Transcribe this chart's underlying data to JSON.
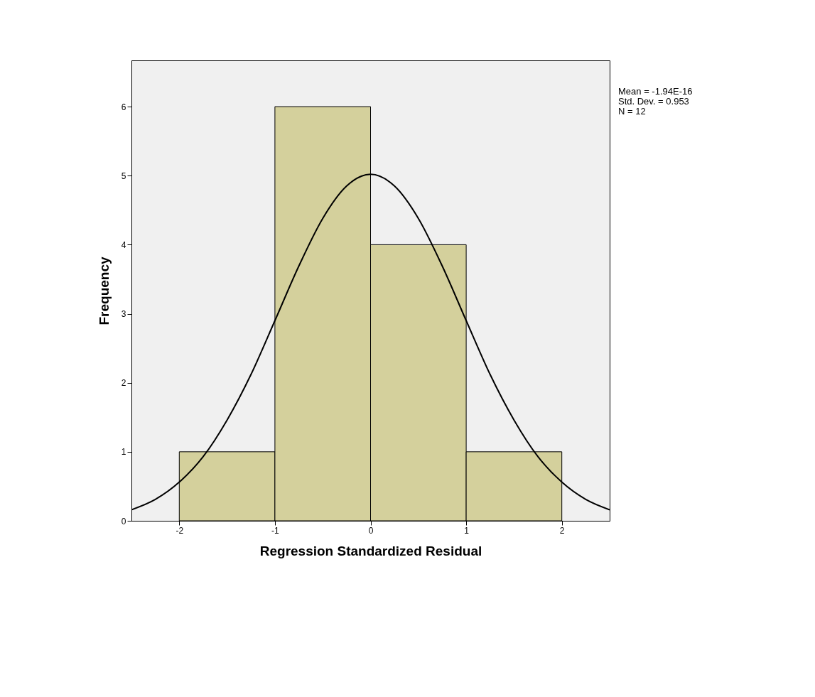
{
  "chart_data": {
    "type": "histogram",
    "xlabel": "Regression Standardized Residual",
    "ylabel": "Frequency",
    "bins": [
      -2,
      -1,
      0,
      1,
      2
    ],
    "series": [
      {
        "color": "#d4d09c",
        "values": [
          1,
          6,
          4,
          1
        ]
      },
      {
        "type": "line",
        "color": "#000000",
        "x": [
          -2.5,
          -2.25,
          -2,
          -1.75,
          -1.5,
          -1.25,
          -1,
          -0.75,
          -0.5,
          -0.25,
          0,
          0.25,
          0.5,
          0.75,
          1,
          1.25,
          1.5,
          1.75,
          2,
          2.25,
          2.5
        ],
        "values": [
          0.16,
          0.31,
          0.56,
          0.93,
          1.46,
          2.12,
          2.9,
          3.69,
          4.38,
          4.85,
          5.02,
          4.85,
          4.38,
          3.69,
          2.9,
          2.12,
          1.46,
          0.93,
          0.56,
          0.31,
          0.16
        ]
      }
    ],
    "xlim": [
      -2.5,
      2.5
    ],
    "ylim": [
      0,
      6.67
    ],
    "xticks": [
      -2,
      -1,
      0,
      1,
      2
    ],
    "yticks": [
      0,
      1,
      2,
      3,
      4,
      5,
      6
    ],
    "grid": false,
    "marker": "none",
    "line_style": "solid",
    "annotations": [
      "Mean = -1.94E-16",
      "Std. Dev. = 0.953",
      "N = 12"
    ]
  }
}
